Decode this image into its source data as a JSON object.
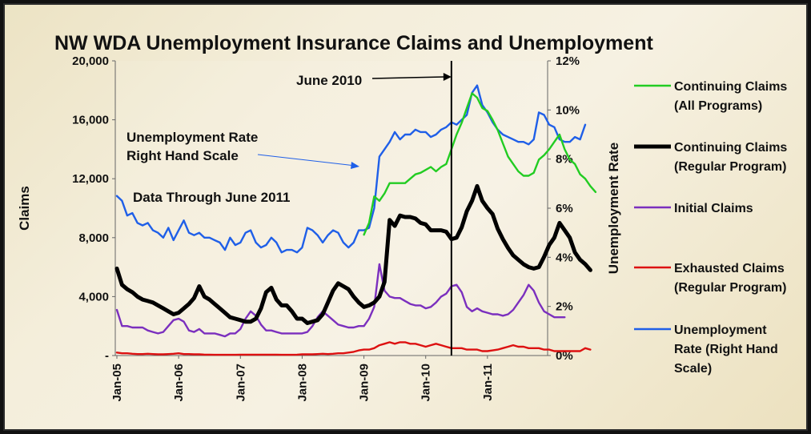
{
  "chart_data": {
    "type": "line",
    "title": "NW WDA Unemployment Insurance Claims and Unemployment",
    "ylabel": "Claims",
    "y2label": "Unemployment  Rate",
    "ylim": [
      0,
      20000
    ],
    "y2lim": [
      0,
      12
    ],
    "yticks": [
      "-",
      "4,000",
      "8,000",
      "12,000",
      "16,000",
      "20,000"
    ],
    "y2ticks": [
      "0%",
      "2%",
      "4%",
      "6%",
      "8%",
      "10%",
      "12%"
    ],
    "xticks": [
      "Jan-05",
      "Jan-06",
      "Jan-07",
      "Jan-08",
      "Jan-09",
      "Jan-10",
      "Jan-11"
    ],
    "x_start": "2005-01",
    "x_end": "2011-06",
    "legend_position": "right",
    "annotations": {
      "june2010": "June 2010",
      "rate_note_line1": "Unemployment Rate",
      "rate_note_line2": "Right Hand Scale",
      "data_through": "Data Through June 2011"
    },
    "series": [
      {
        "name_lines": [
          "Continuing Claims",
          "(All Programs)"
        ],
        "color": "#22cc22",
        "axis": "left",
        "start_month": 48,
        "values": [
          8200,
          9000,
          10800,
          10500,
          11000,
          11700,
          11700,
          11700,
          11700,
          12000,
          12300,
          12400,
          12600,
          12800,
          12500,
          12800,
          13000,
          14000,
          15000,
          15800,
          16800,
          17800,
          17500,
          16800,
          16600,
          16000,
          15300,
          14400,
          13500,
          13000,
          12500,
          12200,
          12200,
          12400,
          13300,
          13600,
          14000,
          14500,
          15000,
          14000,
          13300,
          13000,
          12300,
          12000,
          11500,
          11100
        ]
      },
      {
        "name_lines": [
          "Continuing Claims",
          "(Regular Program)"
        ],
        "color": "#000000",
        "axis": "left",
        "start_month": 0,
        "width": 5,
        "values": [
          5900,
          4800,
          4500,
          4300,
          4000,
          3800,
          3700,
          3600,
          3400,
          3200,
          3000,
          2800,
          2900,
          3200,
          3500,
          3900,
          4700,
          4000,
          3800,
          3500,
          3200,
          2900,
          2600,
          2500,
          2400,
          2300,
          2300,
          2500,
          3200,
          4300,
          4600,
          3800,
          3400,
          3400,
          3000,
          2500,
          2500,
          2200,
          2300,
          2400,
          2800,
          3600,
          4400,
          4900,
          4700,
          4500,
          4000,
          3600,
          3300,
          3400,
          3600,
          4000,
          5000,
          9200,
          8800,
          9500,
          9400,
          9400,
          9300,
          9000,
          8900,
          8500,
          8500,
          8500,
          8400,
          7900,
          8000,
          8700,
          9800,
          10500,
          11500,
          10500,
          10000,
          9600,
          8600,
          7900,
          7300,
          6800,
          6500,
          6200,
          6000,
          5900,
          6000,
          6700,
          7500,
          8000,
          9000,
          8500,
          8000,
          7000,
          6500,
          6200,
          5800
        ]
      },
      {
        "name_lines": [
          "Initial Claims"
        ],
        "color": "#7b2fbe",
        "axis": "left",
        "start_month": 0,
        "values": [
          3100,
          2000,
          2000,
          1900,
          1900,
          1900,
          1700,
          1600,
          1500,
          1600,
          2000,
          2400,
          2500,
          2300,
          1700,
          1600,
          1800,
          1500,
          1500,
          1500,
          1400,
          1300,
          1500,
          1500,
          1800,
          2500,
          3000,
          2700,
          2100,
          1700,
          1700,
          1600,
          1500,
          1500,
          1500,
          1500,
          1500,
          1600,
          2000,
          2600,
          3000,
          2700,
          2400,
          2100,
          2000,
          1900,
          1900,
          2000,
          2000,
          2500,
          3300,
          6200,
          4400,
          4000,
          3900,
          3900,
          3700,
          3500,
          3400,
          3400,
          3200,
          3300,
          3600,
          4000,
          4200,
          4700,
          4800,
          4300,
          3300,
          3000,
          3200,
          3000,
          2900,
          2800,
          2800,
          2700,
          2800,
          3100,
          3600,
          4100,
          4800,
          4400,
          3600,
          3000,
          2800,
          2600,
          2600,
          2600
        ]
      },
      {
        "name_lines": [
          "Exhausted Claims",
          "(Regular Program)"
        ],
        "color": "#dd1111",
        "axis": "left",
        "start_month": 0,
        "values": [
          200,
          150,
          150,
          120,
          100,
          100,
          120,
          100,
          80,
          80,
          100,
          120,
          150,
          100,
          100,
          80,
          80,
          60,
          60,
          50,
          50,
          50,
          50,
          50,
          60,
          60,
          60,
          60,
          60,
          60,
          60,
          60,
          50,
          50,
          50,
          60,
          80,
          80,
          80,
          100,
          120,
          100,
          120,
          150,
          150,
          200,
          250,
          350,
          400,
          400,
          500,
          700,
          800,
          900,
          800,
          900,
          900,
          800,
          800,
          700,
          600,
          700,
          800,
          700,
          600,
          500,
          500,
          500,
          400,
          400,
          400,
          300,
          300,
          350,
          400,
          500,
          600,
          700,
          600,
          600,
          500,
          500,
          500,
          400,
          400,
          300,
          300,
          300,
          300,
          300,
          300,
          500,
          400
        ]
      },
      {
        "name_lines": [
          "Unemployment",
          "Rate (Right Hand",
          "Scale)"
        ],
        "color": "#1f5fe8",
        "axis": "right",
        "start_month": 0,
        "values": [
          6.5,
          6.3,
          5.7,
          5.8,
          5.4,
          5.3,
          5.4,
          5.1,
          5.0,
          4.8,
          5.2,
          4.7,
          5.1,
          5.5,
          5.0,
          4.9,
          5.0,
          4.8,
          4.8,
          4.7,
          4.6,
          4.3,
          4.8,
          4.5,
          4.6,
          5.0,
          5.1,
          4.6,
          4.4,
          4.5,
          4.8,
          4.6,
          4.2,
          4.3,
          4.3,
          4.2,
          4.4,
          5.2,
          5.1,
          4.9,
          4.6,
          4.9,
          5.1,
          5.0,
          4.6,
          4.4,
          4.6,
          5.1,
          5.1,
          5.2,
          6.0,
          8.1,
          8.4,
          8.7,
          9.1,
          8.8,
          9.0,
          9.0,
          9.2,
          9.1,
          9.1,
          8.9,
          9.0,
          9.2,
          9.3,
          9.5,
          9.4,
          9.6,
          9.8,
          10.7,
          11.0,
          10.2,
          9.9,
          9.5,
          9.2,
          9.0,
          8.9,
          8.8,
          8.7,
          8.7,
          8.6,
          8.8,
          9.9,
          9.8,
          9.4,
          9.3,
          8.8,
          8.7,
          8.7,
          8.9,
          8.8,
          9.4
        ]
      }
    ]
  }
}
